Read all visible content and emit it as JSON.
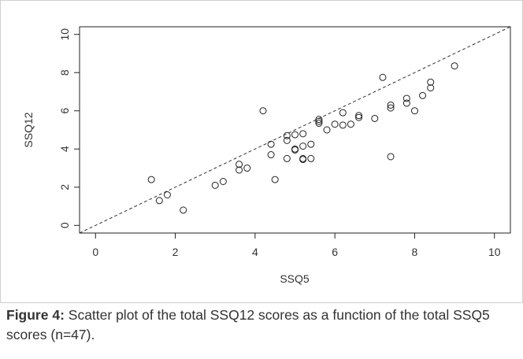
{
  "caption": {
    "label": "Figure 4:",
    "text": " Scatter plot of the total SSQ12 scores as a function of the total SSQ5 scores (n=47)."
  },
  "chart_data": {
    "type": "scatter",
    "title": "",
    "xlabel": "SSQ5",
    "ylabel": "SSQ12",
    "xlim": [
      -0.4,
      10.4
    ],
    "ylim": [
      -0.4,
      10.4
    ],
    "xticks": [
      0,
      2,
      4,
      6,
      8,
      10
    ],
    "yticks": [
      0,
      2,
      4,
      6,
      8,
      10
    ],
    "grid": false,
    "reference_line": {
      "style": "dashed",
      "from": [
        -0.4,
        -0.4
      ],
      "to": [
        10.4,
        10.4
      ]
    },
    "marker": "open-circle",
    "points": [
      [
        1.4,
        2.4
      ],
      [
        1.6,
        1.3
      ],
      [
        1.8,
        1.6
      ],
      [
        2.2,
        0.8
      ],
      [
        3.0,
        2.1
      ],
      [
        3.2,
        2.3
      ],
      [
        3.6,
        3.2
      ],
      [
        3.6,
        2.9
      ],
      [
        3.8,
        3.0
      ],
      [
        4.2,
        6.0
      ],
      [
        4.4,
        4.25
      ],
      [
        4.4,
        3.7
      ],
      [
        4.5,
        2.4
      ],
      [
        4.8,
        4.7
      ],
      [
        4.8,
        4.45
      ],
      [
        4.8,
        3.5
      ],
      [
        5.0,
        4.75
      ],
      [
        5.0,
        4.0
      ],
      [
        5.0,
        3.95
      ],
      [
        5.2,
        4.8
      ],
      [
        5.2,
        4.15
      ],
      [
        5.2,
        3.5
      ],
      [
        5.2,
        3.45
      ],
      [
        5.4,
        4.25
      ],
      [
        5.4,
        3.5
      ],
      [
        5.6,
        5.55
      ],
      [
        5.6,
        5.35
      ],
      [
        5.8,
        5.0
      ],
      [
        6.0,
        5.3
      ],
      [
        6.2,
        5.9
      ],
      [
        6.2,
        5.25
      ],
      [
        6.4,
        5.3
      ],
      [
        6.6,
        5.75
      ],
      [
        6.6,
        5.65
      ],
      [
        7.0,
        5.6
      ],
      [
        7.2,
        7.75
      ],
      [
        7.4,
        6.3
      ],
      [
        7.4,
        6.15
      ],
      [
        7.4,
        3.6
      ],
      [
        7.8,
        6.65
      ],
      [
        7.8,
        6.4
      ],
      [
        8.0,
        6.0
      ],
      [
        8.2,
        6.8
      ],
      [
        8.4,
        7.5
      ],
      [
        8.4,
        7.2
      ],
      [
        9.0,
        8.35
      ],
      [
        5.6,
        5.45
      ]
    ]
  }
}
